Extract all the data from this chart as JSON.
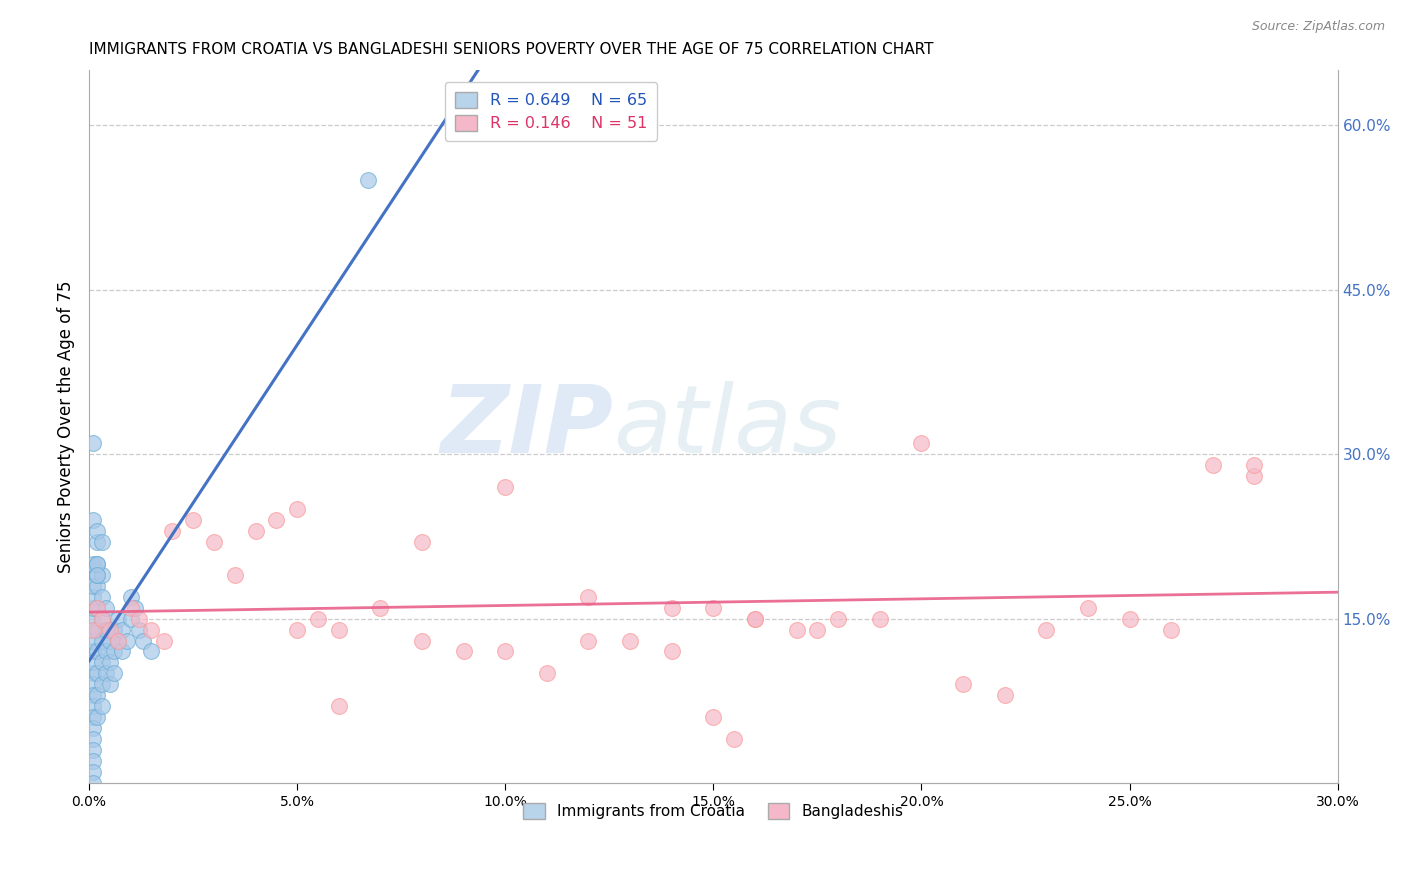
{
  "title": "IMMIGRANTS FROM CROATIA VS BANGLADESHI SENIORS POVERTY OVER THE AGE OF 75 CORRELATION CHART",
  "source": "Source: ZipAtlas.com",
  "ylabel": "Seniors Poverty Over the Age of 75",
  "xlim": [
    0.0,
    0.3
  ],
  "ylim": [
    0.0,
    0.65
  ],
  "xticks": [
    0.0,
    0.05,
    0.1,
    0.15,
    0.2,
    0.25,
    0.3
  ],
  "yticks_right": [
    0.15,
    0.3,
    0.45,
    0.6
  ],
  "croatia_R": 0.649,
  "croatia_N": 65,
  "bangladesh_R": 0.146,
  "bangladesh_N": 51,
  "croatia_color": "#a8c8e8",
  "croatia_edge_color": "#6baed6",
  "bangladesh_color": "#f4b8c8",
  "bangladesh_edge_color": "#fb9a99",
  "line_croatia_color": "#4472c4",
  "line_bangladesh_color": "#e8608a",
  "watermark_zip_color": "#c8dff0",
  "watermark_atlas_color": "#c8d8e8",
  "legend_croatia_face": "#b8d4ea",
  "legend_bangladesh_face": "#f4b8c8",
  "title_fontsize": 11,
  "source_fontsize": 9,
  "croatia_x": [
    0.001,
    0.001,
    0.001,
    0.001,
    0.001,
    0.001,
    0.001,
    0.001,
    0.001,
    0.001,
    0.001,
    0.001,
    0.001,
    0.001,
    0.001,
    0.001,
    0.001,
    0.001,
    0.001,
    0.001,
    0.002,
    0.002,
    0.002,
    0.002,
    0.002,
    0.002,
    0.002,
    0.002,
    0.002,
    0.002,
    0.003,
    0.003,
    0.003,
    0.003,
    0.003,
    0.003,
    0.003,
    0.004,
    0.004,
    0.004,
    0.004,
    0.005,
    0.005,
    0.005,
    0.006,
    0.006,
    0.006,
    0.007,
    0.007,
    0.008,
    0.008,
    0.009,
    0.01,
    0.01,
    0.011,
    0.012,
    0.013,
    0.015,
    0.001,
    0.002,
    0.003,
    0.067,
    0.001,
    0.002,
    0.002
  ],
  "croatia_y": [
    0.14,
    0.12,
    0.1,
    0.09,
    0.08,
    0.07,
    0.06,
    0.05,
    0.04,
    0.03,
    0.02,
    0.01,
    0.0,
    0.11,
    0.13,
    0.15,
    0.16,
    0.17,
    0.18,
    0.2,
    0.14,
    0.12,
    0.1,
    0.08,
    0.06,
    0.16,
    0.18,
    0.2,
    0.22,
    0.19,
    0.13,
    0.11,
    0.09,
    0.07,
    0.15,
    0.17,
    0.19,
    0.14,
    0.12,
    0.1,
    0.16,
    0.13,
    0.11,
    0.09,
    0.14,
    0.12,
    0.1,
    0.15,
    0.13,
    0.14,
    0.12,
    0.13,
    0.15,
    0.17,
    0.16,
    0.14,
    0.13,
    0.12,
    0.24,
    0.23,
    0.22,
    0.55,
    0.31,
    0.2,
    0.19
  ],
  "bangladesh_x": [
    0.001,
    0.002,
    0.003,
    0.005,
    0.007,
    0.01,
    0.012,
    0.015,
    0.018,
    0.02,
    0.025,
    0.03,
    0.035,
    0.04,
    0.045,
    0.05,
    0.055,
    0.06,
    0.07,
    0.08,
    0.09,
    0.1,
    0.11,
    0.12,
    0.13,
    0.14,
    0.15,
    0.16,
    0.17,
    0.18,
    0.05,
    0.06,
    0.08,
    0.1,
    0.12,
    0.15,
    0.14,
    0.16,
    0.175,
    0.19,
    0.2,
    0.21,
    0.22,
    0.23,
    0.24,
    0.25,
    0.26,
    0.27,
    0.28,
    0.155,
    0.28
  ],
  "bangladesh_y": [
    0.14,
    0.16,
    0.15,
    0.14,
    0.13,
    0.16,
    0.15,
    0.14,
    0.13,
    0.23,
    0.24,
    0.22,
    0.19,
    0.23,
    0.24,
    0.14,
    0.15,
    0.14,
    0.16,
    0.13,
    0.12,
    0.12,
    0.1,
    0.13,
    0.13,
    0.12,
    0.16,
    0.15,
    0.14,
    0.15,
    0.25,
    0.07,
    0.22,
    0.27,
    0.17,
    0.06,
    0.16,
    0.15,
    0.14,
    0.15,
    0.31,
    0.09,
    0.08,
    0.14,
    0.16,
    0.15,
    0.14,
    0.29,
    0.28,
    0.04,
    0.29
  ]
}
